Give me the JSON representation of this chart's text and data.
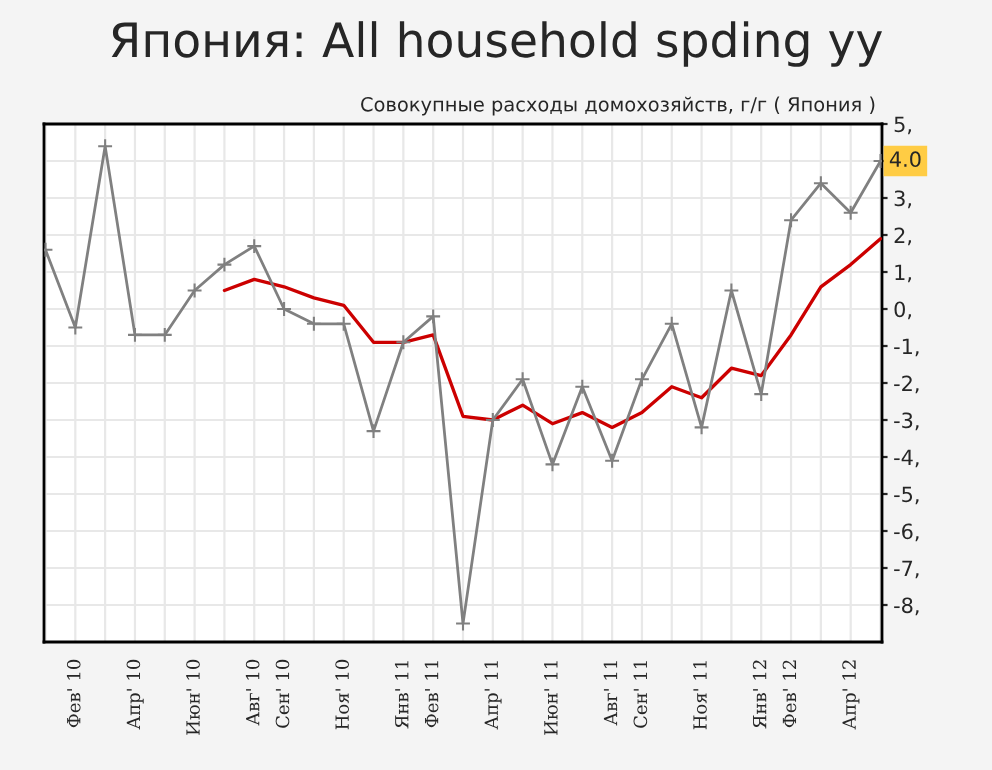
{
  "chart_data": {
    "type": "line",
    "title": "Япония: All household spding yy",
    "annotations": [
      "Совокупные расходы домохозяйств, г/г ( Япония )"
    ],
    "categories": [
      null,
      "Фев' 10",
      null,
      "Апр' 10",
      null,
      "Июн' 10",
      null,
      "Авг' 10",
      "Сен' 10",
      null,
      "Ноя' 10",
      null,
      "Янв' 11",
      "Фев' 11",
      null,
      "Апр' 11",
      null,
      "Июн' 11",
      null,
      "Авг' 11",
      "Сен' 11",
      null,
      "Ноя' 11",
      null,
      "Янв' 12",
      "Фев' 12",
      null,
      "Апр' 12",
      null
    ],
    "series": [
      {
        "color": "#808080",
        "marker": "cross",
        "values": [
          1.6,
          -0.5,
          4.4,
          -0.7,
          -0.7,
          0.5,
          1.2,
          1.7,
          0.0,
          -0.4,
          -0.4,
          -3.3,
          -0.9,
          -0.2,
          -8.5,
          -3.0,
          -1.9,
          -4.2,
          -2.1,
          -4.1,
          -1.9,
          -0.4,
          -3.2,
          0.5,
          -2.3,
          2.4,
          3.4,
          2.6,
          4.0
        ],
        "value_labels": [
          null,
          null,
          null,
          null,
          null,
          null,
          null,
          null,
          null,
          null,
          null,
          null,
          null,
          null,
          null,
          null,
          null,
          null,
          null,
          null,
          null,
          null,
          null,
          null,
          null,
          null,
          null,
          null,
          "4.0"
        ]
      },
      {
        "color": "#cc0000",
        "values": [
          null,
          null,
          null,
          null,
          null,
          null,
          0.5,
          0.8,
          0.6,
          0.3,
          0.1,
          -0.9,
          -0.9,
          -0.7,
          -2.9,
          -3.0,
          -2.6,
          -3.1,
          -2.8,
          -3.2,
          -2.8,
          -2.1,
          -2.4,
          -1.6,
          -1.8,
          -0.7,
          0.6,
          1.2,
          1.9
        ]
      }
    ],
    "ylim": [
      -9,
      5
    ],
    "yticks": [
      {
        "value": 5,
        "label": "5,"
      },
      {
        "value": 4,
        "label": null
      },
      {
        "value": 3,
        "label": "3,"
      },
      {
        "value": 2,
        "label": "2,"
      },
      {
        "value": 1,
        "label": "1,"
      },
      {
        "value": 0,
        "label": "0,"
      },
      {
        "value": -1,
        "label": "-1,"
      },
      {
        "value": -2,
        "label": "-2,"
      },
      {
        "value": -3,
        "label": "-3,"
      },
      {
        "value": -4,
        "label": "-4,"
      },
      {
        "value": -5,
        "label": "-5,"
      },
      {
        "value": -6,
        "label": "-6,"
      },
      {
        "value": -7,
        "label": "-7,"
      },
      {
        "value": -8,
        "label": "-8,"
      }
    ],
    "grid": true
  }
}
